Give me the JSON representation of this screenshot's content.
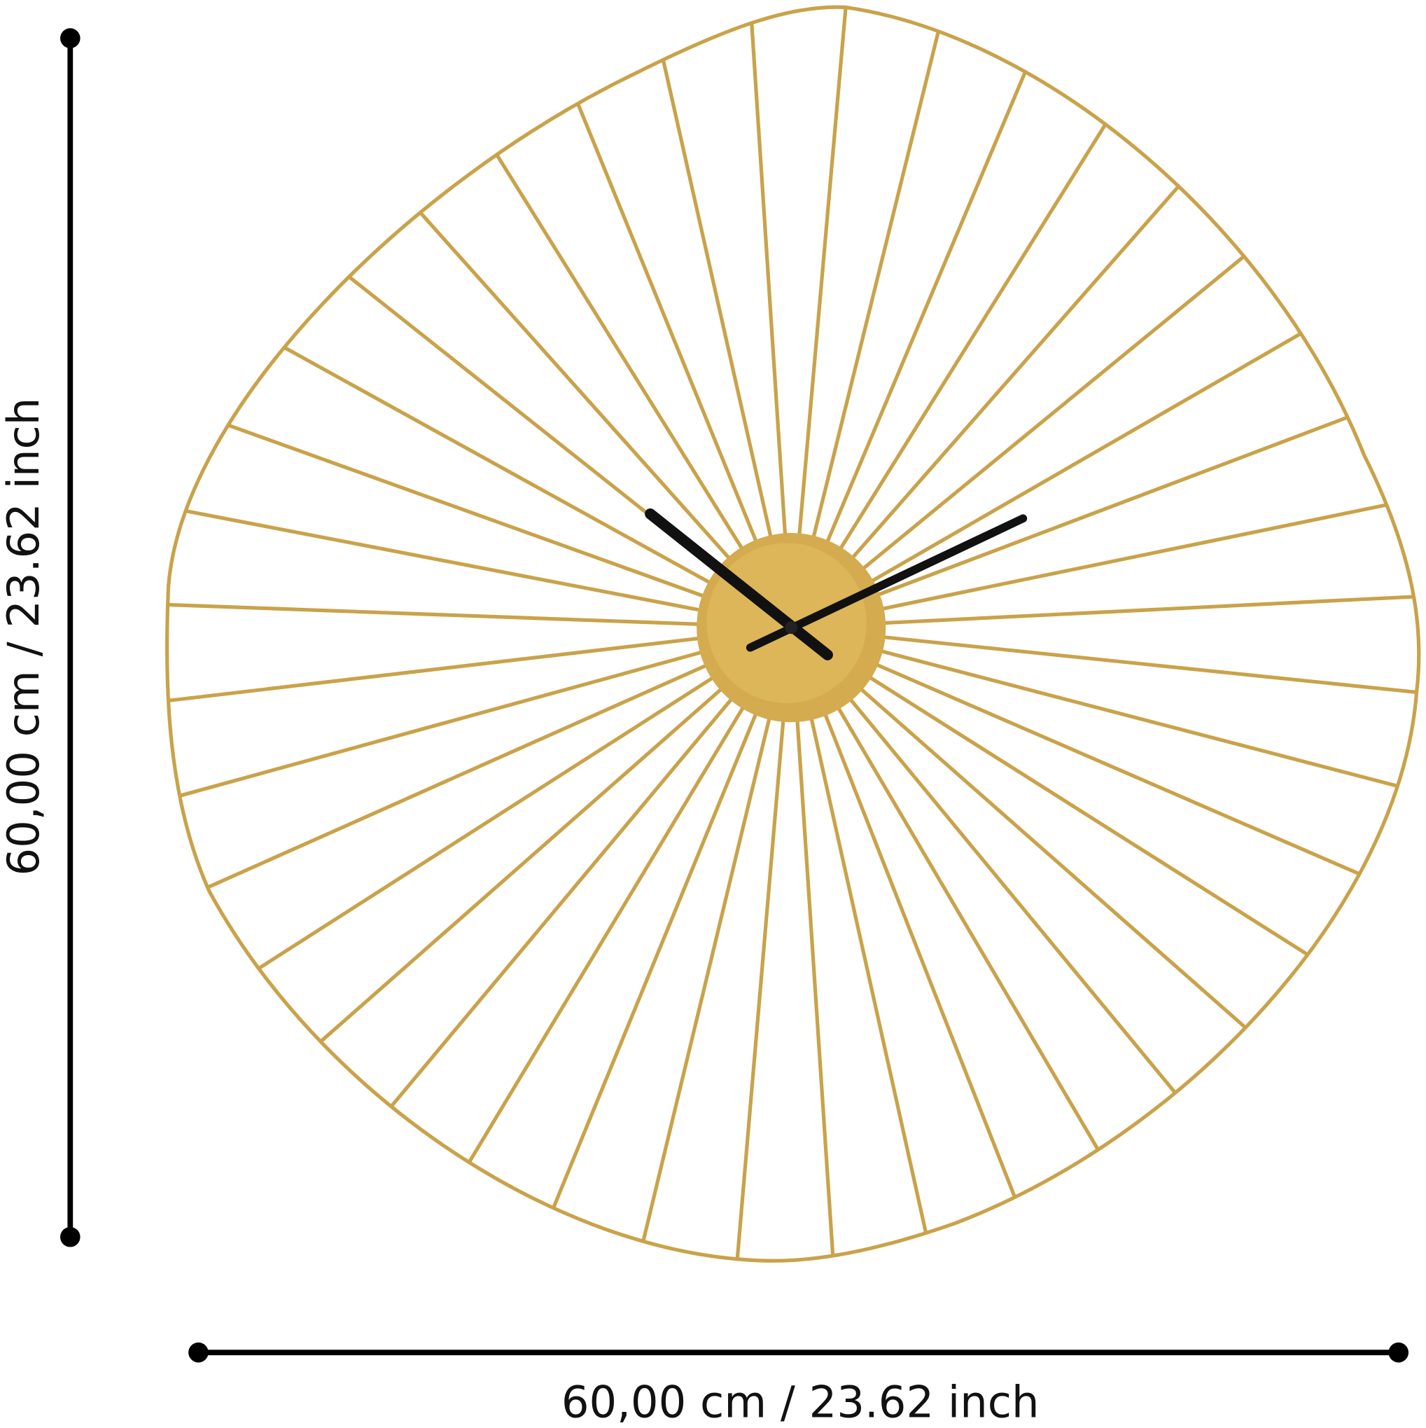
{
  "dimensions": {
    "height": "60,00 cm / 23.62 inch",
    "width": "60,00 cm / 23.62 inch"
  }
}
